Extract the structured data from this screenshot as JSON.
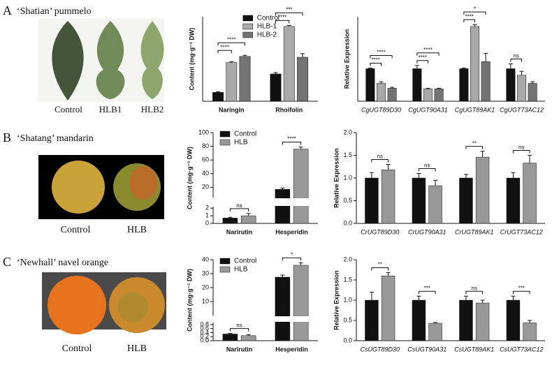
{
  "panels": [
    {
      "letter": "A",
      "title": "‘Shatian’ pummelo",
      "photo_labels": [
        "Control",
        "HLB1",
        "HLB2"
      ]
    },
    {
      "letter": "B",
      "title": "‘Shatang’ mandarin",
      "photo_labels": [
        "Control",
        "HLB"
      ]
    },
    {
      "letter": "C",
      "title": "‘Newhall’ navel orange",
      "photo_labels": [
        "Control",
        "HLB"
      ]
    }
  ],
  "chart_data": [
    {
      "type": "bar",
      "y_label": "Content (mg·g⁻¹ DW)",
      "categories": [
        "Naringin",
        "Rhoifolin"
      ],
      "series": [
        {
          "name": "Control",
          "color": "#111111",
          "values": [
            0.5,
            1.55
          ],
          "errors": [
            0.04,
            0.08
          ]
        },
        {
          "name": "HLB-1",
          "color": "#a9a9a9",
          "values": [
            2.2,
            4.25
          ],
          "errors": [
            0.05,
            0.06
          ]
        },
        {
          "name": "HLB-2",
          "color": "#737373",
          "values": [
            2.55,
            2.5
          ],
          "errors": [
            0.06,
            0.2
          ]
        }
      ],
      "ylim": [
        0,
        4.8
      ],
      "legend": "top-center",
      "annotations": [
        {
          "label": "****",
          "category": 0,
          "between": [
            0,
            1
          ]
        },
        {
          "label": "****",
          "category": 0,
          "between": [
            0,
            2
          ]
        },
        {
          "label": "****",
          "category": 1,
          "between": [
            0,
            1
          ]
        },
        {
          "label": "***",
          "category": 1,
          "between": [
            0,
            2
          ]
        }
      ]
    },
    {
      "type": "bar",
      "y_label": "Relative Expression",
      "italic_categories": true,
      "categories": [
        "CgUGT89D30",
        "CgUGT90A31",
        "CgUGT89AK1",
        "CgUGT73AC12"
      ],
      "series": [
        {
          "name": "Control",
          "color": "#111111",
          "values": [
            1,
            1,
            1,
            1
          ],
          "errors": [
            0.02,
            0.1,
            0.02,
            0.15
          ]
        },
        {
          "name": "HLB-1",
          "color": "#a9a9a9",
          "values": [
            0.55,
            0.38,
            2.3,
            0.8
          ],
          "errors": [
            0.05,
            0.02,
            0.06,
            0.12
          ]
        },
        {
          "name": "HLB-2",
          "color": "#737373",
          "values": [
            0.4,
            0.38,
            1.22,
            0.55
          ],
          "errors": [
            0.03,
            0.02,
            0.25,
            0.05
          ]
        }
      ],
      "ylim": [
        0,
        2.6
      ],
      "annotations": [
        {
          "label": "****",
          "category": 0,
          "between": [
            0,
            1
          ]
        },
        {
          "label": "****",
          "category": 0,
          "between": [
            0,
            2
          ]
        },
        {
          "label": "****",
          "category": 1,
          "between": [
            0,
            1
          ]
        },
        {
          "label": "****",
          "category": 1,
          "between": [
            0,
            2
          ]
        },
        {
          "label": "****",
          "category": 2,
          "between": [
            0,
            1
          ]
        },
        {
          "label": "*",
          "category": 2,
          "between": [
            0,
            2
          ]
        },
        {
          "label": "ns",
          "category": 3,
          "between": [
            0,
            1
          ]
        }
      ]
    },
    {
      "type": "bar",
      "y_label": "Content (mg·g⁻¹ DW)",
      "categories": [
        "Narirutin",
        "Hesperidin"
      ],
      "series": [
        {
          "name": "Control",
          "color": "#111111",
          "values": [
            0.7,
            17
          ],
          "errors": [
            0.1,
            2
          ]
        },
        {
          "name": "HLB",
          "color": "#999999",
          "values": [
            1.0,
            76
          ],
          "errors": [
            0.3,
            3
          ]
        }
      ],
      "ylim": [
        5,
        100
      ],
      "yticks": [
        20,
        40,
        60,
        80,
        100
      ],
      "ylim_lower": [
        0,
        2.2
      ],
      "yticks_lower": [
        0,
        1,
        2
      ],
      "legend": "top-left",
      "annotations": [
        {
          "label": "ns",
          "category": 0,
          "between": [
            0,
            1
          ]
        },
        {
          "label": "****",
          "category": 1,
          "between": [
            0,
            1
          ]
        }
      ]
    },
    {
      "type": "bar",
      "y_label": "Relative Expression",
      "italic_categories": true,
      "categories": [
        "CrUGT89D30",
        "CrUGT90A31",
        "CrUGT89AK1",
        "CrUGT73AC12"
      ],
      "series": [
        {
          "name": "Control",
          "color": "#111111",
          "values": [
            1,
            1,
            1,
            1
          ],
          "errors": [
            0.12,
            0.1,
            0.08,
            0.12
          ]
        },
        {
          "name": "HLB",
          "color": "#999999",
          "values": [
            1.18,
            0.83,
            1.46,
            1.33
          ],
          "errors": [
            0.12,
            0.12,
            0.13,
            0.17
          ]
        }
      ],
      "ylim": [
        0,
        2
      ],
      "yticks": [
        {
          "value": 0,
          "label": "0.0"
        },
        0.5,
        {
          "value": 1,
          "label": "1.0"
        },
        1.5,
        {
          "value": 2,
          "label": "2.0"
        }
      ],
      "annotations": [
        {
          "label": "ns",
          "category": 0,
          "between": [
            0,
            1
          ]
        },
        {
          "label": "ns",
          "category": 1,
          "between": [
            0,
            1
          ]
        },
        {
          "label": "**",
          "category": 2,
          "between": [
            0,
            1
          ]
        },
        {
          "label": "ns",
          "category": 3,
          "between": [
            0,
            1
          ]
        }
      ]
    },
    {
      "type": "bar",
      "y_label": "Content (mg·g⁻¹ DW)",
      "categories": [
        "Narirutin",
        "Hesperidin"
      ],
      "series": [
        {
          "name": "Control",
          "color": "#111111",
          "values": [
            0.33,
            27.5
          ],
          "errors": [
            0.03,
            1.5
          ]
        },
        {
          "name": "HLB",
          "color": "#999999",
          "values": [
            0.25,
            36
          ],
          "errors": [
            0.05,
            1.8
          ]
        }
      ],
      "ylim": [
        0,
        40
      ],
      "yticks": [
        0,
        10,
        20,
        30,
        40
      ],
      "ylim_lower": [
        0,
        0.9
      ],
      "yticks_lower": [
        {
          "value": 0,
          "label": "0.0"
        },
        0.2,
        0.4,
        0.6,
        0.8
      ],
      "legend": "top-left",
      "annotations": [
        {
          "label": "ns",
          "category": 0,
          "between": [
            0,
            1
          ]
        },
        {
          "label": "*",
          "category": 1,
          "between": [
            0,
            1
          ]
        }
      ]
    },
    {
      "type": "bar",
      "y_label": "Relative Expression",
      "italic_categories": true,
      "categories": [
        "CsUGT89D30",
        "CsUGT90A31",
        "CsUGT89AK1",
        "CsUGT73AC12"
      ],
      "series": [
        {
          "name": "Control",
          "color": "#111111",
          "values": [
            1,
            1,
            1,
            1
          ],
          "errors": [
            0.2,
            0.1,
            0.1,
            0.1
          ]
        },
        {
          "name": "HLB",
          "color": "#999999",
          "values": [
            1.6,
            0.43,
            0.93,
            0.44
          ],
          "errors": [
            0.08,
            0.02,
            0.07,
            0.06
          ]
        }
      ],
      "ylim": [
        0,
        2
      ],
      "yticks": [
        {
          "value": 0,
          "label": "0.0"
        },
        0.5,
        {
          "value": 1,
          "label": "1.0"
        },
        1.5,
        {
          "value": 2,
          "label": "2.0"
        }
      ],
      "annotations": [
        {
          "label": "**",
          "category": 0,
          "between": [
            0,
            1
          ]
        },
        {
          "label": "***",
          "category": 1,
          "between": [
            0,
            1
          ]
        },
        {
          "label": "ns",
          "category": 2,
          "between": [
            0,
            1
          ]
        },
        {
          "label": "***",
          "category": 3,
          "between": [
            0,
            1
          ]
        }
      ]
    }
  ]
}
